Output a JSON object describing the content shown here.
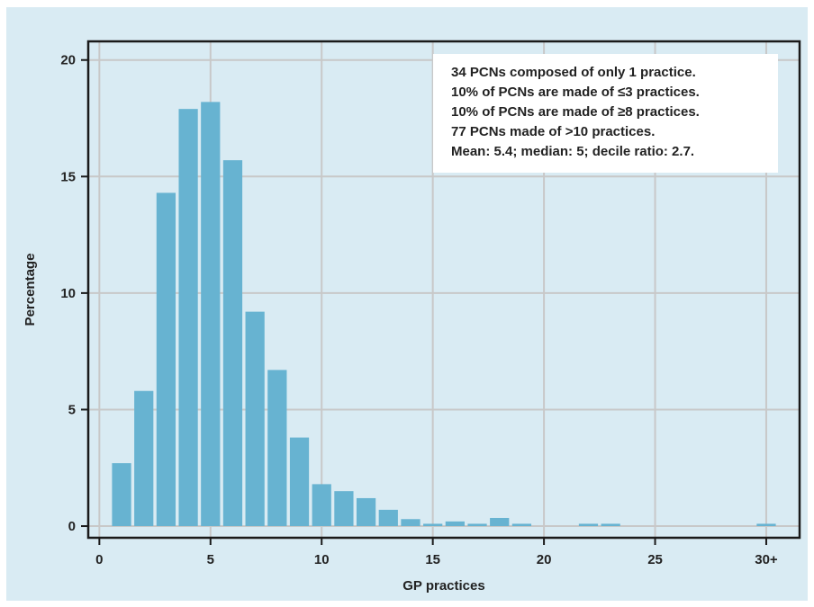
{
  "chart_data": {
    "type": "bar",
    "title": "",
    "xlabel": "GP practices",
    "ylabel": "Percentage",
    "xlim": [
      -0.5,
      31.5
    ],
    "ylim": [
      -0.5,
      20.8
    ],
    "x_ticks": [
      {
        "value": 0,
        "label": "0"
      },
      {
        "value": 5,
        "label": "5"
      },
      {
        "value": 10,
        "label": "10"
      },
      {
        "value": 15,
        "label": "15"
      },
      {
        "value": 20,
        "label": "20"
      },
      {
        "value": 25,
        "label": "25"
      },
      {
        "value": 30,
        "label": "30+"
      }
    ],
    "y_ticks": [
      {
        "value": 0,
        "label": "0"
      },
      {
        "value": 5,
        "label": "5"
      },
      {
        "value": 10,
        "label": "10"
      },
      {
        "value": 15,
        "label": "15"
      },
      {
        "value": 20,
        "label": "20"
      }
    ],
    "grid": true,
    "bar_color": "#67b3d1",
    "bars": [
      {
        "x": 1,
        "value": 2.7
      },
      {
        "x": 2,
        "value": 5.8
      },
      {
        "x": 3,
        "value": 14.3
      },
      {
        "x": 4,
        "value": 17.9
      },
      {
        "x": 5,
        "value": 18.2
      },
      {
        "x": 6,
        "value": 15.7
      },
      {
        "x": 7,
        "value": 9.2
      },
      {
        "x": 8,
        "value": 6.7
      },
      {
        "x": 9,
        "value": 3.8
      },
      {
        "x": 10,
        "value": 1.8
      },
      {
        "x": 11,
        "value": 1.5
      },
      {
        "x": 12,
        "value": 1.2
      },
      {
        "x": 13,
        "value": 0.7
      },
      {
        "x": 14,
        "value": 0.3
      },
      {
        "x": 15,
        "value": 0.1
      },
      {
        "x": 16,
        "value": 0.2
      },
      {
        "x": 17,
        "value": 0.1
      },
      {
        "x": 18,
        "value": 0.35
      },
      {
        "x": 19,
        "value": 0.1
      },
      {
        "x": 22,
        "value": 0.1
      },
      {
        "x": 23,
        "value": 0.1
      },
      {
        "x": 30,
        "value": 0.1
      }
    ],
    "annotation": {
      "lines": [
        "34 PCNs composed of only 1 practice.",
        "10% of PCNs are made of ≤3 practices.",
        "10% of PCNs are made of ≥8 practices.",
        "77 PCNs made of >10 practices.",
        "Mean: 5.4; median: 5; decile ratio: 2.7."
      ],
      "placement": "top-right"
    }
  },
  "colors": {
    "background": "#d9ebf3",
    "plot_background": "#d9ebf3",
    "grid": "#c8c8c8",
    "axis": "#1a1a1a",
    "bar": "#67b3d1",
    "annotation_box": "#ffffff"
  }
}
